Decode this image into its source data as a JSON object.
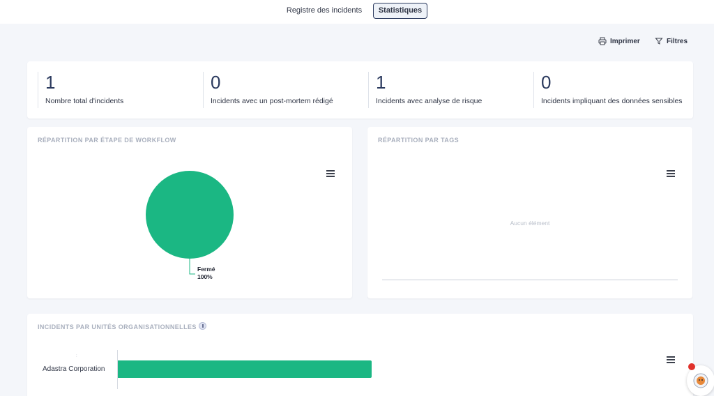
{
  "tabs": {
    "registre": "Registre des incidents",
    "statistiques": "Statistiques"
  },
  "actions": {
    "print": "Imprimer",
    "filters": "Filtres"
  },
  "kpis": [
    {
      "value": "1",
      "label": "Nombre total d'incidents"
    },
    {
      "value": "0",
      "label": "Incidents avec un post-mortem rédigé"
    },
    {
      "value": "1",
      "label": "Incidents avec analyse de risque"
    },
    {
      "value": "0",
      "label": "Incidents impliquant des données sensibles"
    }
  ],
  "workflow_chart": {
    "title": "RÉPARTITION PAR ÉTAPE DE WORKFLOW",
    "slice_color": "#1bb783",
    "chart_data": {
      "type": "pie",
      "categories": [
        "Fermé"
      ],
      "values": [
        100
      ],
      "data_labels": [
        {
          "name": "Fermé",
          "percent": "100%"
        }
      ]
    }
  },
  "tags_chart": {
    "title": "RÉPARTITION PAR TAGS",
    "empty_text": "Aucun élément"
  },
  "org_chart": {
    "title": "INCIDENTS PAR UNITÉS ORGANISATIONNELLES",
    "bar_color": "#1bb783",
    "chart_data": {
      "type": "bar",
      "orientation": "horizontal",
      "categories": [
        "Adastra Corporation"
      ],
      "values": [
        1
      ],
      "xlim": [
        0,
        2.2
      ]
    }
  },
  "colors": {
    "accent": "#1bb783",
    "tab_border": "#2b3a5e",
    "notification": "#e0312b"
  }
}
